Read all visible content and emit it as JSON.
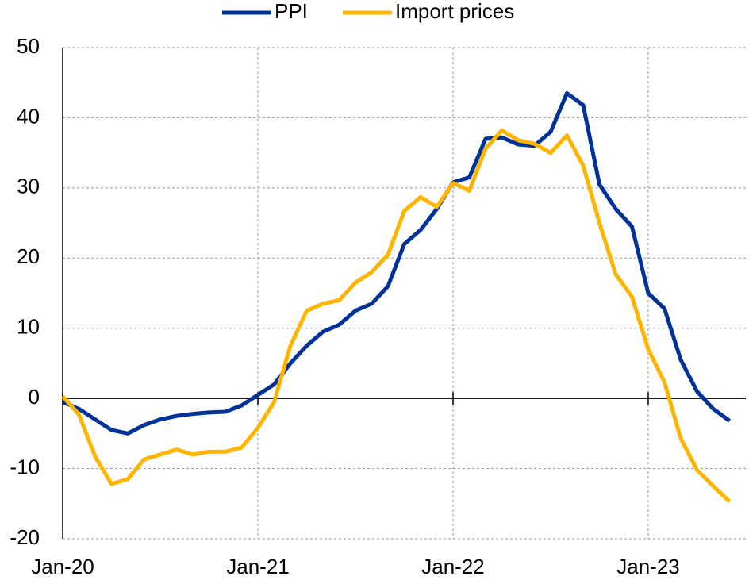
{
  "chart_data": {
    "type": "line",
    "categories": [
      "Jan-20",
      null,
      null,
      null,
      null,
      null,
      null,
      null,
      null,
      null,
      null,
      null,
      "Jan-21",
      null,
      null,
      null,
      null,
      null,
      null,
      null,
      null,
      null,
      null,
      null,
      "Jan-22",
      null,
      null,
      null,
      null,
      null,
      null,
      null,
      null,
      null,
      null,
      null,
      "Jan-23",
      null,
      null,
      null,
      null,
      null
    ],
    "series": [
      {
        "name": "PPI",
        "color": "#003299",
        "values": [
          -0.5,
          -1.5,
          -3,
          -4.5,
          -5,
          -3.8,
          -3,
          -2.5,
          -2.2,
          -2,
          -1.9,
          -1,
          0.5,
          2,
          5,
          7.5,
          9.5,
          10.5,
          12.5,
          13.5,
          16,
          22,
          24,
          27,
          30.8,
          31.5,
          37,
          37.2,
          36.2,
          36,
          38,
          43.5,
          41.8,
          30.5,
          27,
          24.5,
          15,
          12.8,
          5.5,
          1,
          -1.5,
          -3.2
        ]
      },
      {
        "name": "Import prices",
        "color": "#ffb400",
        "values": [
          0.3,
          -2.3,
          -8.3,
          -12.2,
          -11.5,
          -8.7,
          -8,
          -7.3,
          -8,
          -7.6,
          -7.6,
          -7,
          -4.2,
          -0.5,
          7.5,
          12.5,
          13.5,
          14,
          16.5,
          18,
          20.5,
          26.7,
          28.7,
          27.3,
          30.7,
          29.6,
          35.6,
          38.2,
          36.8,
          36.3,
          35,
          37.5,
          33.2,
          25,
          17.7,
          14.5,
          7,
          2.3,
          -5.7,
          -10.2,
          -12.5,
          -14.7
        ]
      }
    ],
    "ylim": [
      -20,
      50
    ],
    "yticks": [
      -20,
      -10,
      0,
      10,
      20,
      30,
      40,
      50
    ],
    "grid": true,
    "legend": "top"
  }
}
